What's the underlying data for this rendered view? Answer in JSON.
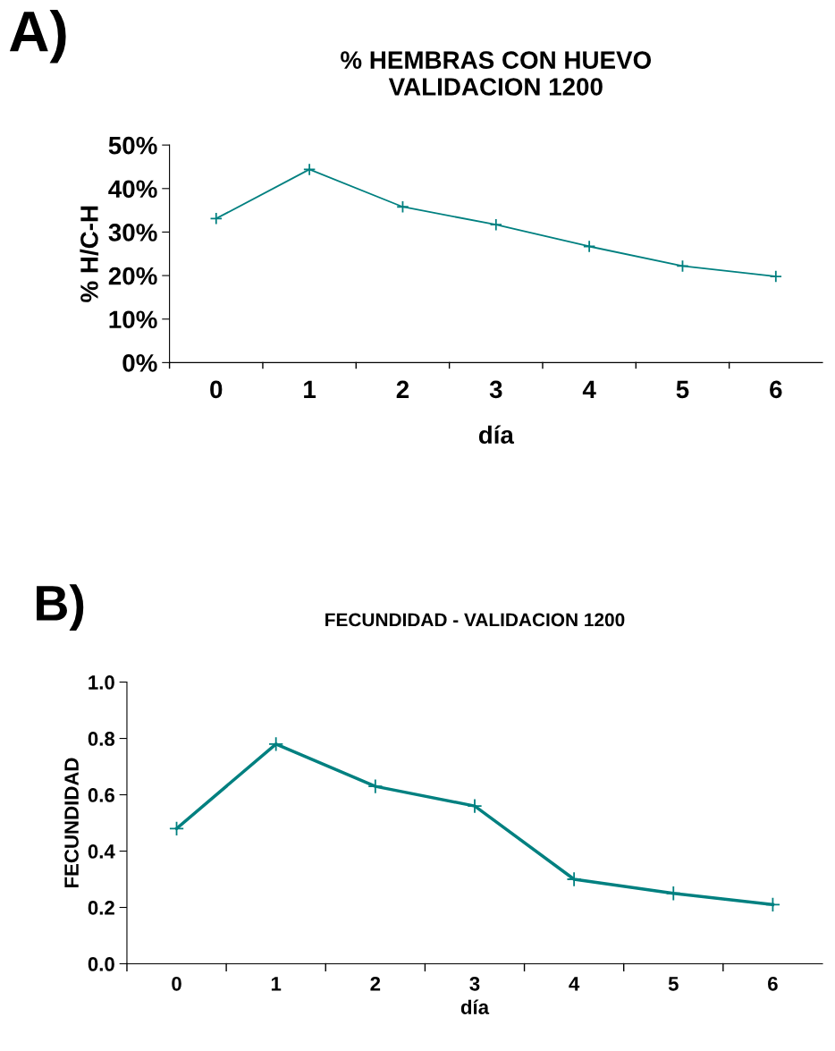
{
  "chart_data": [
    {
      "type": "line",
      "title": "% HEMBRAS CON HUEVO\nVALIDACION 1200",
      "xlabel": "día",
      "ylabel": "% H/C-H",
      "annotations": [
        "A)"
      ],
      "categories": [
        "0",
        "1",
        "2",
        "3",
        "4",
        "5",
        "6"
      ],
      "series": [
        {
          "color": "#008080",
          "values": [
            33.1,
            44.4,
            35.8,
            31.7,
            26.7,
            22.2,
            19.8
          ]
        }
      ],
      "ylim": [
        0,
        50
      ],
      "yticks": [
        {
          "value": 0,
          "label": "0%"
        },
        {
          "value": 10,
          "label": "10%"
        },
        {
          "value": 20,
          "label": "20%"
        },
        {
          "value": 30,
          "label": "30%"
        },
        {
          "value": 40,
          "label": "40%"
        },
        {
          "value": 50,
          "label": "50%"
        }
      ],
      "grid": false,
      "legend": false,
      "marker": "cross",
      "line_style": "solid"
    },
    {
      "type": "line",
      "title": "FECUNDIDAD - VALIDACION 1200",
      "xlabel": "día",
      "ylabel": "FECUNDIDAD",
      "annotations": [
        "B)"
      ],
      "categories": [
        "0",
        "1",
        "2",
        "3",
        "4",
        "5",
        "6"
      ],
      "series": [
        {
          "color": "#008080",
          "values": [
            0.48,
            0.78,
            0.63,
            0.56,
            0.3,
            0.25,
            0.21
          ]
        }
      ],
      "ylim": [
        0,
        1
      ],
      "yticks": [
        {
          "value": 0,
          "label": "0.0"
        },
        {
          "value": 0.2,
          "label": "0.2"
        },
        {
          "value": 0.4,
          "label": "0.4"
        },
        {
          "value": 0.6,
          "label": "0.6"
        },
        {
          "value": 0.8,
          "label": "0.8"
        },
        {
          "value": 1,
          "label": "1.0"
        }
      ],
      "grid": false,
      "legend": false,
      "marker": "cross",
      "line_style": "solid"
    }
  ]
}
